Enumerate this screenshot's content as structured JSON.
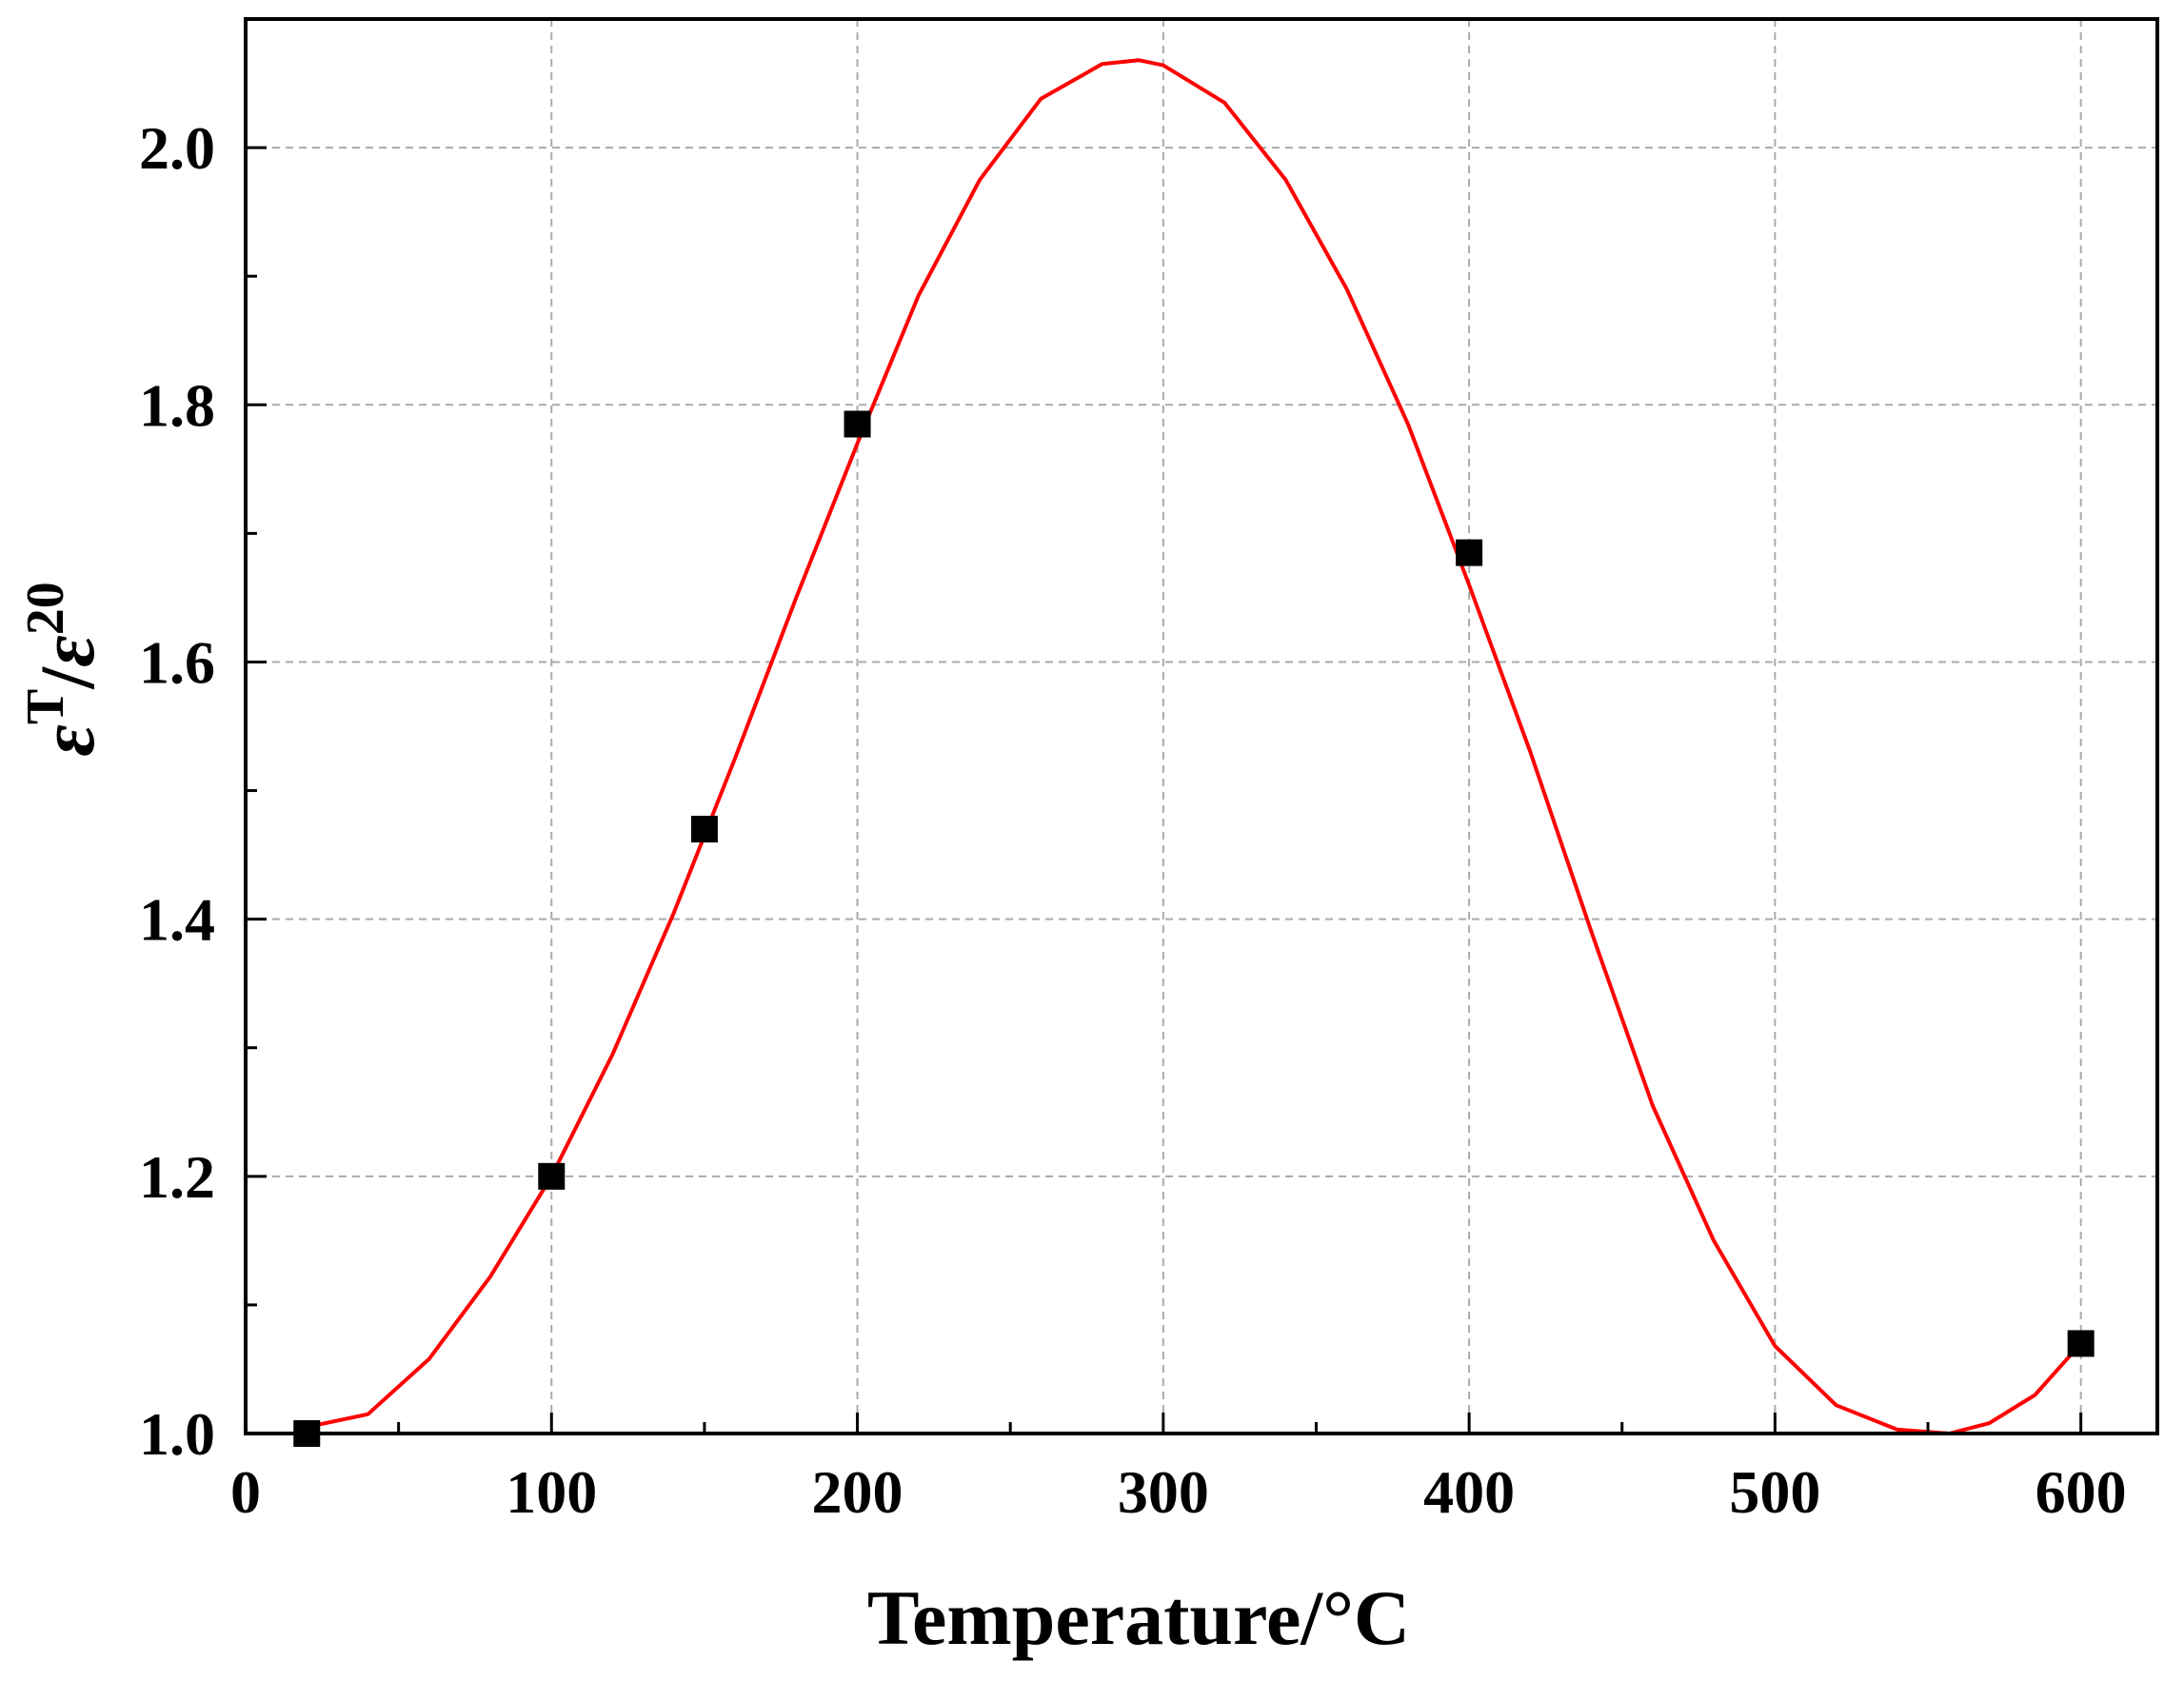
{
  "chart_data": {
    "type": "scatter",
    "title": "",
    "xlabel": "Temperature/°C",
    "ylabel": {
      "main": "ε",
      "sup1": "T",
      "slash": "/",
      "main2": "ε",
      "sup2": "20"
    },
    "xlim": [
      0,
      625
    ],
    "ylim": [
      1.0,
      2.1
    ],
    "x_ticks": [
      0,
      100,
      200,
      300,
      400,
      500,
      600
    ],
    "x_tick_labels": [
      "0",
      "100",
      "200",
      "300",
      "400",
      "500",
      "600"
    ],
    "y_ticks": [
      1.0,
      1.2,
      1.4,
      1.6,
      1.8,
      2.0
    ],
    "y_tick_labels": [
      "1.0",
      "1.2",
      "1.4",
      "1.6",
      "1.8",
      "2.0"
    ],
    "grid": true,
    "series": [
      {
        "kind": "scatter",
        "marker": "square",
        "color": "#000000",
        "x": [
          20,
          100,
          150,
          200,
          400,
          600
        ],
        "y": [
          1.0,
          1.2,
          1.47,
          1.785,
          1.685,
          1.07
        ]
      },
      {
        "kind": "line",
        "color": "#ff0000",
        "x": [
          20,
          40,
          60,
          80,
          100,
          120,
          140,
          160,
          180,
          200,
          220,
          240,
          260,
          280,
          292,
          300,
          320,
          340,
          360,
          380,
          400,
          420,
          440,
          460,
          480,
          500,
          520,
          540,
          557,
          570,
          585,
          600
        ],
        "y": [
          1.005,
          1.015,
          1.058,
          1.122,
          1.2,
          1.295,
          1.405,
          1.525,
          1.65,
          1.77,
          1.885,
          1.975,
          2.038,
          2.065,
          2.068,
          2.064,
          2.035,
          1.975,
          1.89,
          1.785,
          1.66,
          1.53,
          1.39,
          1.255,
          1.15,
          1.068,
          1.022,
          1.003,
          1.0,
          1.008,
          1.03,
          1.07
        ]
      }
    ]
  }
}
